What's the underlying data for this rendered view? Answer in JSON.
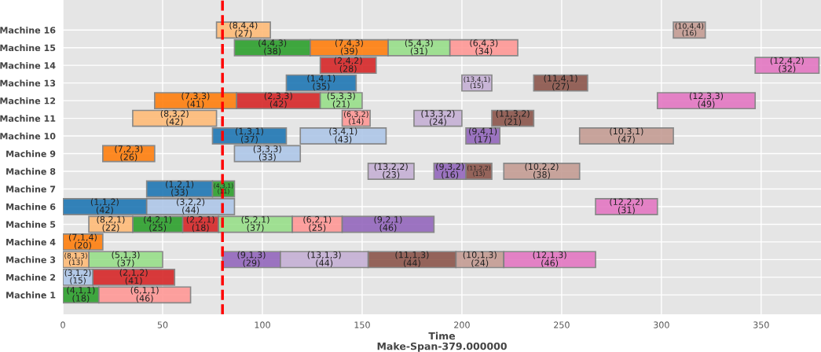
{
  "chart_data": {
    "type": "bar",
    "orientation": "horizontal",
    "xlabel": "Time\nMake-Span-379.000000",
    "categories": [
      "Machine 16",
      "Machine 15",
      "Machine 14",
      "Machine 13",
      "Machine 12",
      "Machine 11",
      "Machine 10",
      "Machine 9",
      "Machine 8",
      "Machine 7",
      "Machine 6",
      "Machine 5",
      "Machine 4",
      "Machine 3",
      "Machine 2",
      "Machine 1"
    ],
    "xlim": [
      0,
      380
    ],
    "xticks": [
      0,
      50,
      100,
      150,
      200,
      250,
      300,
      350
    ],
    "grid": true,
    "ref_lines": [
      {
        "axis": "x",
        "value": 80,
        "color": "#ff0000",
        "line_style": "dashed"
      }
    ],
    "series": [
      {
        "color": "#1f77b4",
        "values": [
          null,
          null,
          null,
          35,
          null,
          null,
          37,
          null,
          null,
          33,
          42,
          null,
          null,
          null,
          null,
          null
        ],
        "base": [
          null,
          null,
          null,
          112,
          null,
          null,
          75,
          null,
          null,
          42,
          0,
          null,
          null,
          null,
          null,
          null
        ],
        "value_labels": [
          null,
          null,
          null,
          "(1,4,1)\n(35)",
          null,
          null,
          "(1,3,1)\n(37)",
          null,
          null,
          "(1,2,1)\n(33)",
          "(1,1,2)\n(42)",
          null,
          null,
          null,
          null,
          null
        ]
      },
      {
        "color": "#d62728",
        "values": [
          null,
          null,
          28,
          null,
          42,
          null,
          null,
          null,
          null,
          null,
          null,
          18,
          null,
          null,
          41,
          null
        ],
        "base": [
          null,
          null,
          129,
          null,
          87,
          null,
          null,
          null,
          null,
          null,
          null,
          60,
          null,
          null,
          15,
          null
        ],
        "value_labels": [
          null,
          null,
          "(2,4,2)\n(28)",
          null,
          "(2,3,3)\n(42)",
          null,
          null,
          null,
          null,
          null,
          null,
          "(2,2,1)\n(18)",
          null,
          null,
          "(2,1,2)\n(41)",
          null
        ]
      },
      {
        "color": "#aec7e8",
        "values": [
          null,
          null,
          null,
          null,
          null,
          null,
          43,
          33,
          null,
          null,
          44,
          null,
          null,
          null,
          15,
          null
        ],
        "base": [
          null,
          null,
          null,
          null,
          null,
          null,
          119,
          86,
          null,
          null,
          42,
          null,
          null,
          null,
          0,
          null
        ],
        "value_labels": [
          null,
          null,
          null,
          null,
          null,
          null,
          "(3,4,1)\n(43)",
          "(3,3,3)\n(33)",
          null,
          null,
          "(3,2,2)\n(44)",
          null,
          null,
          null,
          "(3,1,2)\n(15)",
          null
        ]
      },
      {
        "color": "#2ca02c",
        "values": [
          null,
          38,
          null,
          null,
          null,
          null,
          null,
          null,
          null,
          11,
          null,
          25,
          null,
          null,
          null,
          18
        ],
        "base": [
          null,
          86,
          null,
          null,
          null,
          null,
          null,
          null,
          null,
          75,
          null,
          35,
          null,
          null,
          null,
          0
        ],
        "value_labels": [
          null,
          "(4,4,3)\n(38)",
          null,
          null,
          null,
          null,
          null,
          null,
          null,
          "(4,3,1)\n(11)",
          null,
          "(4,2,1)\n(25)",
          null,
          null,
          null,
          "(4,1,1)\n(18)"
        ]
      },
      {
        "color": "#98df8a",
        "values": [
          null,
          31,
          null,
          null,
          21,
          null,
          null,
          null,
          null,
          null,
          null,
          37,
          null,
          37,
          null,
          null
        ],
        "base": [
          null,
          163,
          null,
          null,
          129,
          null,
          null,
          null,
          null,
          null,
          null,
          78,
          null,
          13,
          null,
          null
        ],
        "value_labels": [
          null,
          "(5,4,3)\n(31)",
          null,
          null,
          "(5,3,3)\n(21)",
          null,
          null,
          null,
          null,
          null,
          null,
          "(5,2,1)\n(37)",
          null,
          "(5,1,3)\n(37)",
          null,
          null
        ]
      },
      {
        "color": "#ff9896",
        "values": [
          null,
          34,
          null,
          null,
          null,
          14,
          null,
          null,
          null,
          null,
          null,
          25,
          null,
          null,
          null,
          46
        ],
        "base": [
          null,
          194,
          null,
          null,
          null,
          140,
          null,
          null,
          null,
          null,
          null,
          115,
          null,
          null,
          null,
          18
        ],
        "value_labels": [
          null,
          "(6,4,3)\n(34)",
          null,
          null,
          null,
          "(6,3,2)\n(14)",
          null,
          null,
          null,
          null,
          null,
          "(6,2,1)\n(25)",
          null,
          null,
          null,
          "(6,1,1)\n(46)"
        ]
      },
      {
        "color": "#ff7f0e",
        "values": [
          null,
          39,
          null,
          null,
          41,
          null,
          null,
          26,
          null,
          null,
          null,
          null,
          20,
          null,
          null,
          null
        ],
        "base": [
          null,
          124,
          null,
          null,
          46,
          null,
          null,
          20,
          null,
          null,
          null,
          null,
          0,
          null,
          null,
          null
        ],
        "value_labels": [
          null,
          "(7,4,3)\n(39)",
          null,
          null,
          "(7,3,3)\n(41)",
          null,
          null,
          "(7,2,3)\n(26)",
          null,
          null,
          null,
          null,
          "(7,1,4)\n(20)",
          null,
          null,
          null
        ]
      },
      {
        "color": "#ffbb78",
        "values": [
          27,
          null,
          null,
          null,
          null,
          42,
          null,
          null,
          null,
          null,
          null,
          22,
          null,
          13,
          null,
          null
        ],
        "base": [
          77,
          null,
          null,
          null,
          null,
          35,
          null,
          null,
          null,
          null,
          null,
          13,
          null,
          0,
          null,
          null
        ],
        "value_labels": [
          "(8,4,4)\n(27)",
          null,
          null,
          null,
          null,
          "(8,3,2)\n(42)",
          null,
          null,
          null,
          null,
          null,
          "(8,2,1)\n(22)",
          null,
          "(8,1,3)\n(13)",
          null,
          null
        ]
      },
      {
        "color": "#9467bd",
        "values": [
          null,
          null,
          null,
          null,
          null,
          null,
          17,
          null,
          16,
          null,
          null,
          46,
          null,
          29,
          null,
          null
        ],
        "base": [
          null,
          null,
          null,
          null,
          null,
          null,
          202,
          null,
          186,
          null,
          null,
          140,
          null,
          80,
          null,
          null
        ],
        "value_labels": [
          null,
          null,
          null,
          null,
          null,
          null,
          "(9,4,1)\n(17)",
          null,
          "(9,3,2)\n(16)",
          null,
          null,
          "(9,2,1)\n(46)",
          null,
          "(9,1,3)\n(29)",
          null,
          null
        ]
      },
      {
        "color": "#c49c94",
        "values": [
          16,
          null,
          null,
          null,
          null,
          null,
          47,
          null,
          38,
          null,
          null,
          null,
          null,
          24,
          null,
          null
        ],
        "base": [
          306,
          null,
          null,
          null,
          null,
          null,
          259,
          null,
          221,
          null,
          null,
          null,
          null,
          197,
          null,
          null
        ],
        "value_labels": [
          "(10,4,4)\n(16)",
          null,
          null,
          null,
          null,
          null,
          "(10,3,1)\n(47)",
          null,
          "(10,2,2)\n(38)",
          null,
          null,
          null,
          null,
          "(10,1,3)\n(24)",
          null,
          null
        ]
      },
      {
        "color": "#8c564b",
        "values": [
          null,
          null,
          null,
          27,
          null,
          21,
          null,
          null,
          13,
          null,
          null,
          null,
          null,
          44,
          null,
          null
        ],
        "base": [
          null,
          null,
          null,
          236,
          null,
          215,
          null,
          null,
          202,
          null,
          null,
          null,
          null,
          153,
          null,
          null
        ],
        "value_labels": [
          null,
          null,
          null,
          "(11,4,1)\n(27)",
          null,
          "(11,3,2)\n(21)",
          null,
          null,
          "(11,2,2)\n(13)",
          null,
          null,
          null,
          null,
          "(11,1,3)\n(44)",
          null,
          null
        ]
      },
      {
        "color": "#e377c2",
        "values": [
          null,
          null,
          32,
          null,
          49,
          null,
          null,
          null,
          null,
          null,
          31,
          null,
          null,
          46,
          null,
          null
        ],
        "base": [
          null,
          null,
          347,
          null,
          298,
          null,
          null,
          null,
          null,
          null,
          267,
          null,
          null,
          221,
          null,
          null
        ],
        "value_labels": [
          null,
          null,
          "(12,4,2)\n(32)",
          null,
          "(12,3,3)\n(49)",
          null,
          null,
          null,
          null,
          null,
          "(12,2,2)\n(31)",
          null,
          null,
          "(12,1,3)\n(46)",
          null,
          null
        ]
      },
      {
        "color": "#c5b0d5",
        "values": [
          null,
          null,
          null,
          15,
          null,
          24,
          null,
          null,
          23,
          null,
          null,
          null,
          null,
          44,
          null,
          null
        ],
        "base": [
          null,
          null,
          null,
          200,
          null,
          176,
          null,
          null,
          153,
          null,
          null,
          null,
          null,
          109,
          null,
          null
        ],
        "value_labels": [
          null,
          null,
          null,
          "(13,4,1)\n(15)",
          null,
          "(13,3,2)\n(24)",
          null,
          null,
          "(13,2,2)\n(23)",
          null,
          null,
          null,
          null,
          "(13,1,3)\n(44)",
          null,
          null
        ]
      }
    ]
  }
}
